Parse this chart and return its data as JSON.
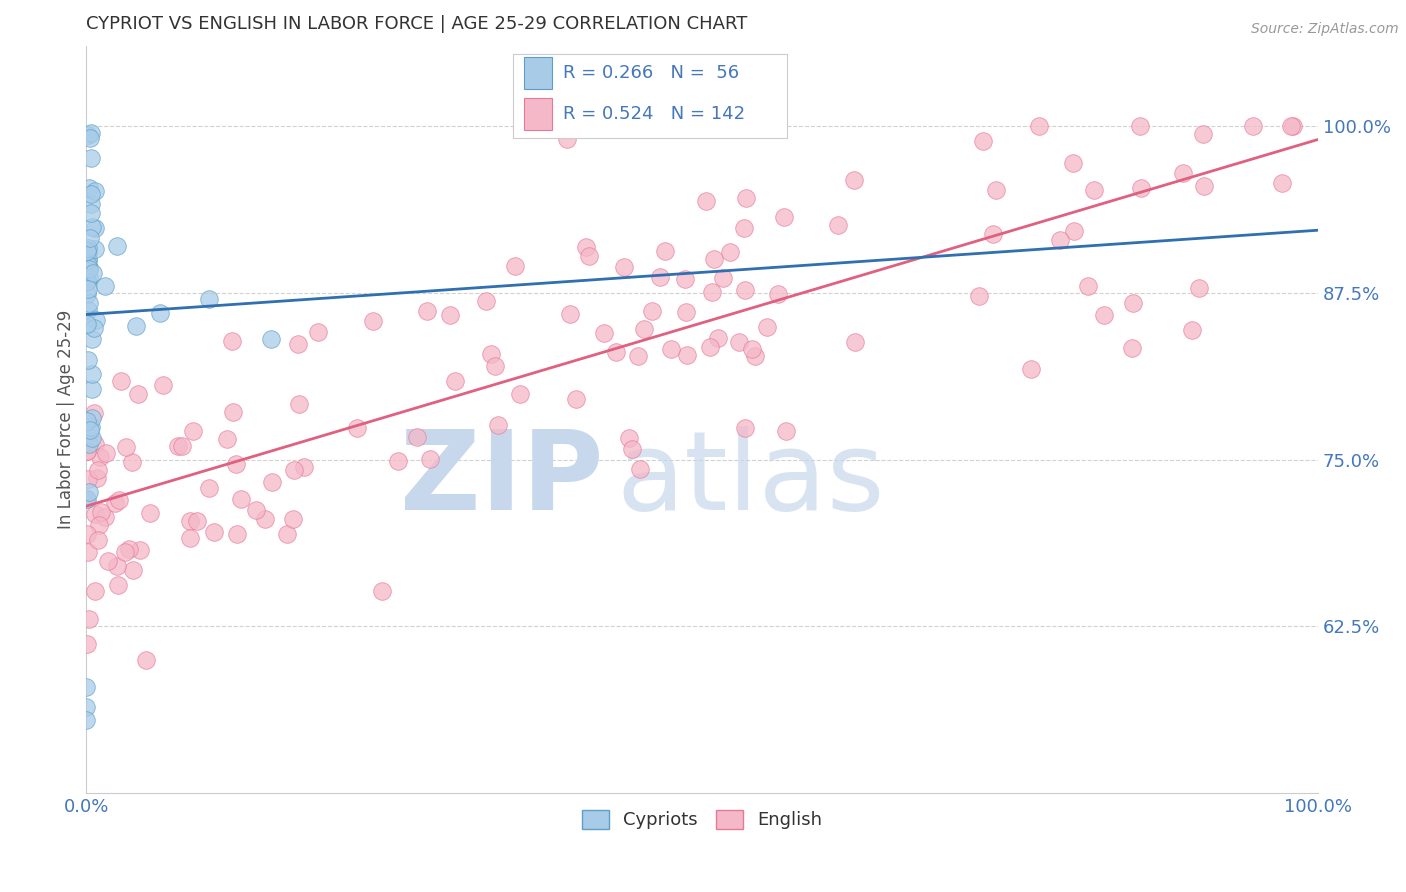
{
  "title": "CYPRIOT VS ENGLISH IN LABOR FORCE | AGE 25-29 CORRELATION CHART",
  "source_text": "Source: ZipAtlas.com",
  "ylabel": "In Labor Force | Age 25-29",
  "xlim": [
    0.0,
    1.0
  ],
  "ylim": [
    0.5,
    1.06
  ],
  "yticks": [
    0.625,
    0.75,
    0.875,
    1.0
  ],
  "ytick_labels": [
    "62.5%",
    "75.0%",
    "87.5%",
    "100.0%"
  ],
  "xticks": [
    0.0,
    0.1,
    0.2,
    0.3,
    0.4,
    0.5,
    0.6,
    0.7,
    0.8,
    0.9,
    1.0
  ],
  "xtick_labels": [
    "0.0%",
    "",
    "",
    "",
    "",
    "",
    "",
    "",
    "",
    "",
    "100.0%"
  ],
  "legend_R_cypriot": "0.266",
  "legend_N_cypriot": "56",
  "legend_R_english": "0.524",
  "legend_N_english": "142",
  "cypriot_color": "#a8cce8",
  "english_color": "#f4b8c8",
  "cypriot_edge_color": "#5b9fc8",
  "english_edge_color": "#e87898",
  "trend_cypriot_color": "#3070b0",
  "trend_english_color": "#e06080",
  "legend_box_cypriot_face": "#a8cce8",
  "legend_box_cypriot_edge": "#5b9fc8",
  "legend_box_english_face": "#f4b8c8",
  "legend_box_english_edge": "#e87898",
  "watermark_zip_color": "#c8d8ec",
  "watermark_atlas_color": "#c8d8ec",
  "title_color": "#333333",
  "axis_label_color": "#555555",
  "tick_color": "#4477bb",
  "grid_color": "#cccccc",
  "background_color": "#ffffff",
  "source_color": "#999999"
}
